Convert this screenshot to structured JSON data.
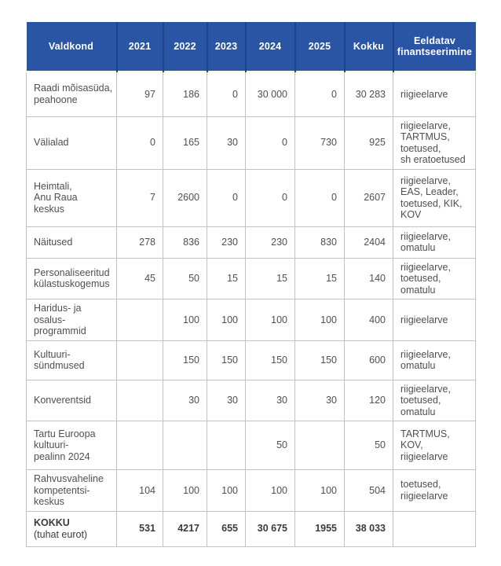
{
  "theme": {
    "header_bg": "#2a55a4",
    "header_text": "#ffffff",
    "header_divider": "#1e4387",
    "body_border": "#c2c2c2",
    "body_text": "#4f4f4f",
    "total_text": "#3b3b3b",
    "page_bg": "#ffffff"
  },
  "chart_data": {
    "type": "table",
    "columns": [
      "Valdkond",
      "2021",
      "2022",
      "2023",
      "2024",
      "2025",
      "Kokku",
      "Eeldatav\nfinantseerimine"
    ],
    "rows": [
      {
        "cells": [
          "Raadi mõisasüda,\npeahoone",
          "97",
          "186",
          "0",
          "30 000",
          "0",
          "30 283",
          "riigieelarve"
        ]
      },
      {
        "cells": [
          "Välialad",
          "0",
          "165",
          "30",
          "0",
          "730",
          "925",
          "riigieelarve,\nTARTMUS,\ntoetused,\nsh eratoetused"
        ]
      },
      {
        "cells": [
          "Heimtali,\nAnu Raua\nkeskus",
          "7",
          "2600",
          "0",
          "0",
          "0",
          "2607",
          "riigieelarve,\nEAS, Leader,\ntoetused, KIK,\nKOV"
        ]
      },
      {
        "cells": [
          "Näitused",
          "278",
          "836",
          "230",
          "230",
          "830",
          "2404",
          "riigieelarve,\nomatulu"
        ]
      },
      {
        "cells": [
          "Personaliseeritud\nkülastuskogemus",
          "45",
          "50",
          "15",
          "15",
          "15",
          "140",
          "riigieelarve,\ntoetused,\nomatulu"
        ]
      },
      {
        "cells": [
          "Haridus- ja\nosalus-\nprogrammid",
          "",
          "100",
          "100",
          "100",
          "100",
          "400",
          "riigieelarve"
        ]
      },
      {
        "cells": [
          "Kultuuri-\nsündmused",
          "",
          "150",
          "150",
          "150",
          "150",
          "600",
          "riigieelarve,\nomatulu"
        ]
      },
      {
        "cells": [
          "Konverentsid",
          "",
          "30",
          "30",
          "30",
          "30",
          "120",
          "riigieelarve,\ntoetused,\nomatulu"
        ]
      },
      {
        "cells": [
          "Tartu Euroopa\nkultuuri-\npealinn 2024",
          "",
          "",
          "",
          "50",
          "",
          "50",
          "TARTMUS, KOV,\nriigieelarve"
        ]
      },
      {
        "cells": [
          "Rahvusvaheline\nkompetentsi-\nkeskus",
          "104",
          "100",
          "100",
          "100",
          "100",
          "504",
          "toetused,\nriigieelarve"
        ]
      },
      {
        "cells": [
          "KOKKU\n(tuhat eurot)",
          "531",
          "4217",
          "655",
          "30 675",
          "1955",
          "38 033",
          ""
        ],
        "total": true
      }
    ]
  }
}
